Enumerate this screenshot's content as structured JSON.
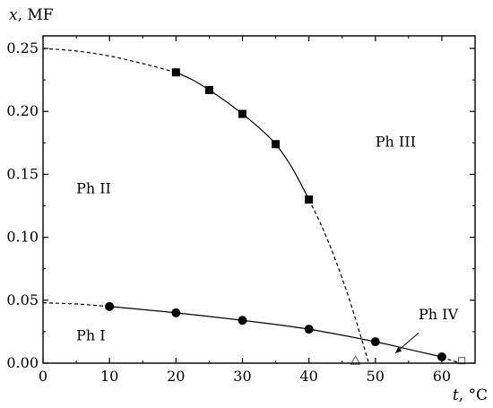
{
  "chart_data": {
    "type": "scatter",
    "xlabel_var": "t",
    "xlabel_unit": ", °C",
    "ylabel_var": "x",
    "ylabel_unit": ", MF",
    "xlim": [
      0,
      65
    ],
    "ylim": [
      0,
      0.26
    ],
    "x_ticks": [
      0,
      10,
      20,
      30,
      40,
      50,
      60
    ],
    "y_ticks": [
      0.0,
      0.05,
      0.1,
      0.15,
      0.2,
      0.25
    ],
    "x_tick_labels": [
      "0",
      "10",
      "20",
      "30",
      "40",
      "50",
      "60"
    ],
    "y_tick_labels": [
      "0.00",
      "0.05",
      "0.10",
      "0.15",
      "0.20",
      "0.25"
    ],
    "grid": false,
    "series": [
      {
        "marker": "filled-square",
        "x": [
          20,
          25,
          30,
          35,
          40
        ],
        "y": [
          0.231,
          0.217,
          0.198,
          0.174,
          0.13
        ]
      },
      {
        "marker": "filled-circle",
        "x": [
          10,
          20,
          30,
          40,
          50,
          60
        ],
        "y": [
          0.045,
          0.04,
          0.034,
          0.027,
          0.017,
          0.005
        ]
      },
      {
        "marker": "open-triangle",
        "x": [
          47
        ],
        "y": [
          0.002
        ]
      },
      {
        "marker": "open-square",
        "x": [
          63
        ],
        "y": [
          0.002
        ]
      }
    ],
    "curves": [
      {
        "style": "dashed",
        "x": [
          0,
          5,
          10,
          15,
          20
        ],
        "y": [
          0.25,
          0.248,
          0.244,
          0.238,
          0.231
        ]
      },
      {
        "style": "solid",
        "x": [
          20,
          22.5,
          25,
          27.5,
          30,
          32.5,
          35,
          37.5,
          40
        ],
        "y": [
          0.231,
          0.225,
          0.217,
          0.208,
          0.198,
          0.187,
          0.174,
          0.155,
          0.13
        ]
      },
      {
        "style": "dashed",
        "x": [
          40,
          42,
          44,
          46,
          48,
          49
        ],
        "y": [
          0.13,
          0.108,
          0.082,
          0.052,
          0.018,
          0.0
        ]
      },
      {
        "style": "dashed",
        "x": [
          0,
          5,
          10
        ],
        "y": [
          0.048,
          0.047,
          0.045
        ]
      },
      {
        "style": "solid",
        "x": [
          10,
          20,
          30,
          40,
          50,
          55,
          60
        ],
        "y": [
          0.045,
          0.04,
          0.034,
          0.027,
          0.017,
          0.011,
          0.005
        ]
      },
      {
        "style": "dashed",
        "x": [
          60,
          61.5,
          63
        ],
        "y": [
          0.005,
          0.002,
          0.0
        ]
      }
    ],
    "annotations": [
      {
        "text": "Ph II",
        "x": 5,
        "y": 0.135
      },
      {
        "text": "Ph I",
        "x": 5,
        "y": 0.018
      },
      {
        "text": "Ph III",
        "x": 50,
        "y": 0.172
      },
      {
        "text": "Ph IV",
        "x": 56.5,
        "y": 0.035
      }
    ],
    "arrow": {
      "from": [
        56.5,
        0.024
      ],
      "to": [
        53,
        0.008
      ]
    }
  }
}
